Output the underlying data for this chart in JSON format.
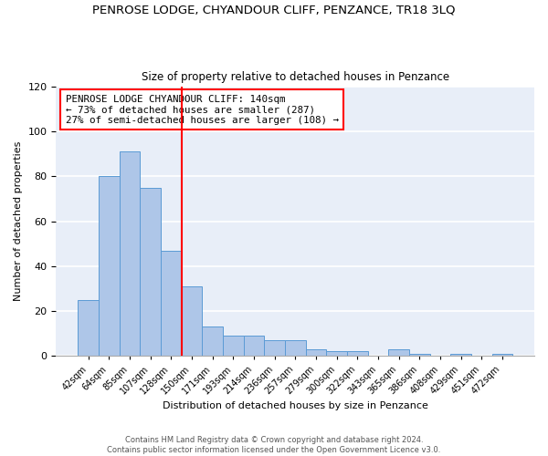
{
  "title": "PENROSE LODGE, CHYANDOUR CLIFF, PENZANCE, TR18 3LQ",
  "subtitle": "Size of property relative to detached houses in Penzance",
  "xlabel": "Distribution of detached houses by size in Penzance",
  "ylabel": "Number of detached properties",
  "bin_labels": [
    "42sqm",
    "64sqm",
    "85sqm",
    "107sqm",
    "128sqm",
    "150sqm",
    "171sqm",
    "193sqm",
    "214sqm",
    "236sqm",
    "257sqm",
    "279sqm",
    "300sqm",
    "322sqm",
    "343sqm",
    "365sqm",
    "386sqm",
    "408sqm",
    "429sqm",
    "451sqm",
    "472sqm"
  ],
  "bar_values": [
    25,
    80,
    91,
    75,
    47,
    31,
    13,
    9,
    9,
    7,
    7,
    3,
    2,
    2,
    0,
    3,
    1,
    0,
    1,
    0,
    1
  ],
  "bar_color": "#aec6e8",
  "bar_edge_color": "#5b9bd5",
  "vline_x": 4.5,
  "vline_color": "red",
  "ylim": [
    0,
    120
  ],
  "yticks": [
    0,
    20,
    40,
    60,
    80,
    100,
    120
  ],
  "annotation_line1": "PENROSE LODGE CHYANDOUR CLIFF: 140sqm",
  "annotation_line2": "← 73% of detached houses are smaller (287)",
  "annotation_line3": "27% of semi-detached houses are larger (108) →",
  "annotation_box_color": "white",
  "annotation_box_edge_color": "red",
  "footer_text": "Contains HM Land Registry data © Crown copyright and database right 2024.\nContains public sector information licensed under the Open Government Licence v3.0.",
  "bg_color": "#e8eef8"
}
